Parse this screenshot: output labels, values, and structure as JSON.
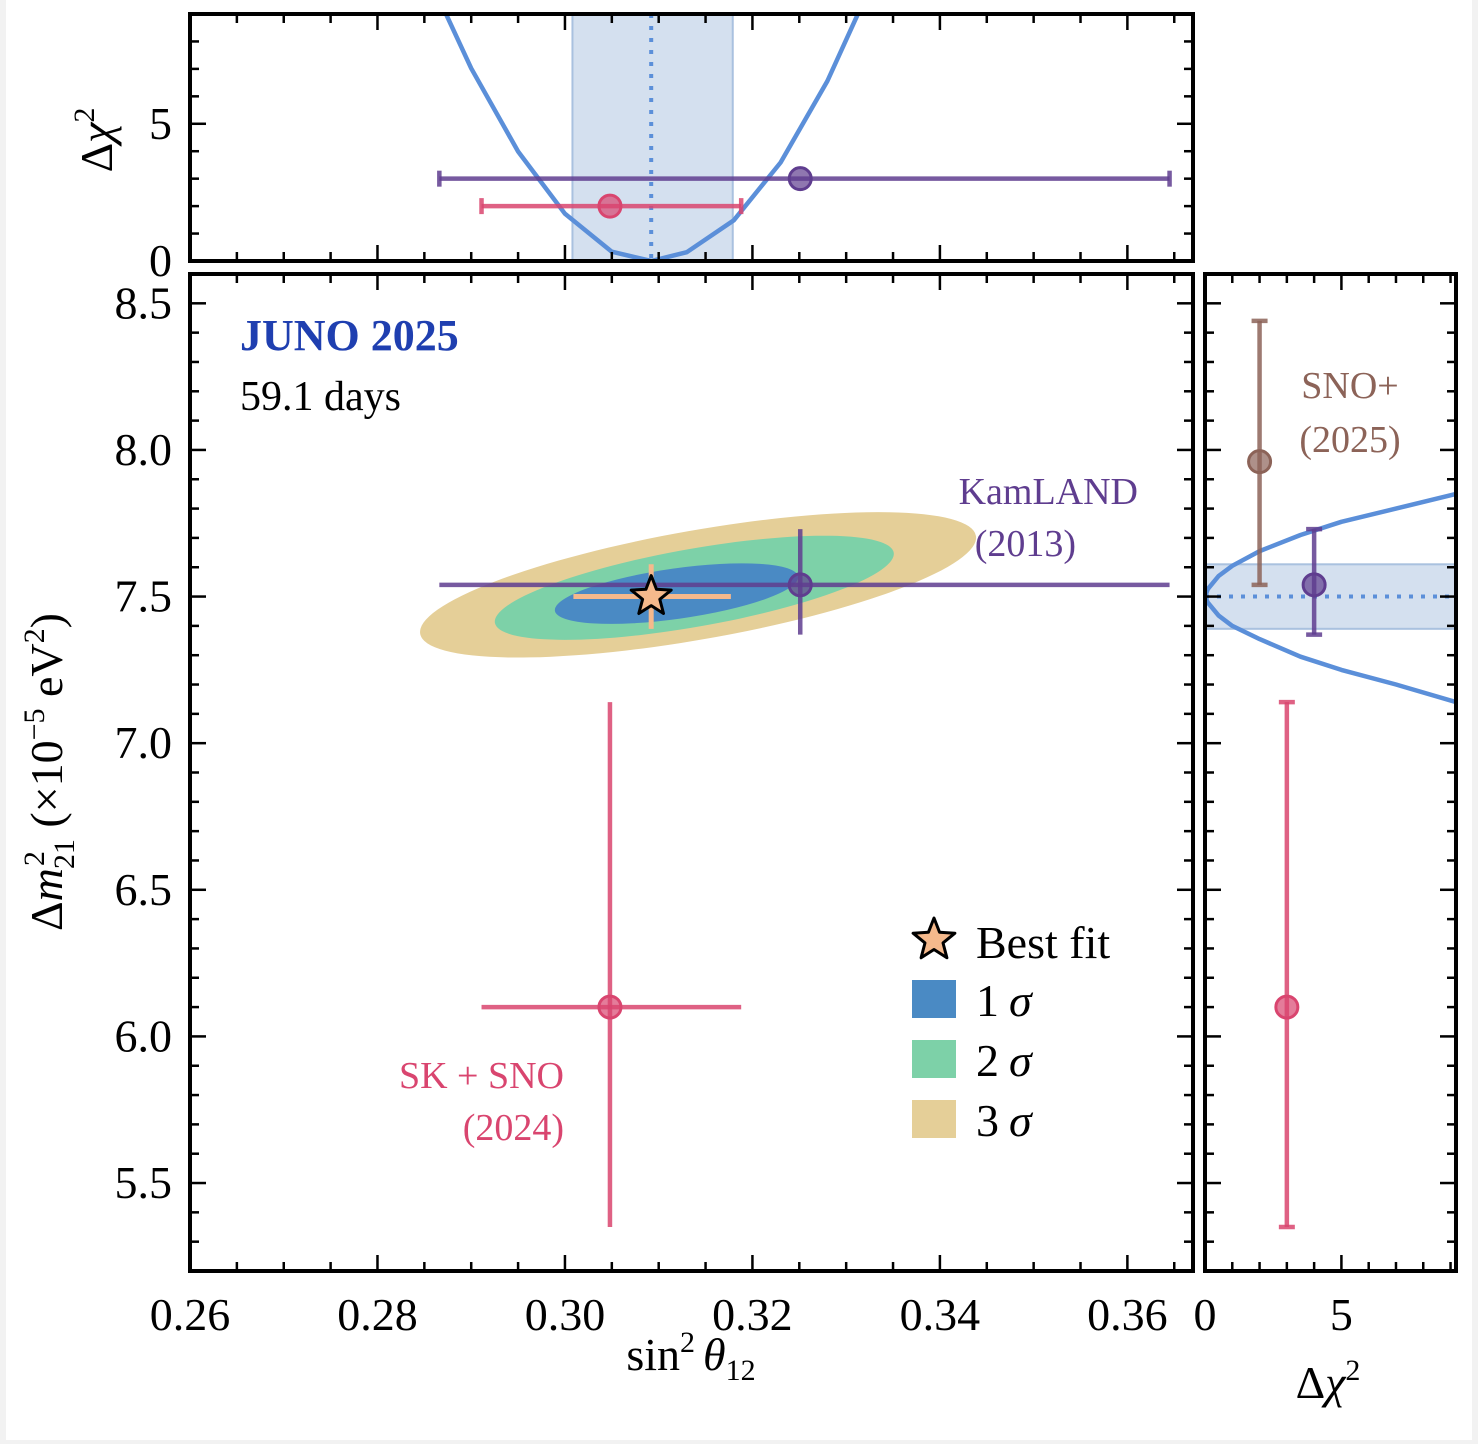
{
  "chart_data": [
    {
      "panel": "top",
      "type": "line",
      "xlim": [
        0.26,
        0.367
      ],
      "ylim": [
        0,
        9
      ],
      "yticks": [
        0,
        5
      ],
      "ylabel": {
        "prefix": "Δ",
        "var": "χ",
        "sup": "2"
      },
      "curve": {
        "color": "#5b8fd9",
        "min_x": 0.3092,
        "points": [
          [
            0.285,
            10.7
          ],
          [
            0.29,
            7.02
          ],
          [
            0.295,
            3.99
          ],
          [
            0.3,
            1.72
          ],
          [
            0.305,
            0.34
          ],
          [
            0.3092,
            0.0
          ],
          [
            0.313,
            0.32
          ],
          [
            0.318,
            1.48
          ],
          [
            0.323,
            3.59
          ],
          [
            0.328,
            6.56
          ],
          [
            0.333,
            10.31
          ]
        ]
      },
      "band": {
        "x0": 0.3008,
        "x1": 0.3179,
        "color": "#c6d6ea"
      },
      "best_fit_x": 0.3092,
      "points": [
        {
          "name": "KamLAND (2013)",
          "x": 0.3251,
          "y": 3.0,
          "xerr": [
            0.2866,
            0.3645
          ],
          "color": "#5f3d8f"
        },
        {
          "name": "SK + SNO (2024)",
          "x": 0.3048,
          "y": 2.0,
          "xerr": [
            0.2911,
            0.3188
          ],
          "color": "#d9456f"
        }
      ]
    },
    {
      "panel": "main",
      "type": "scatter",
      "xlabel": {
        "fn": "sin",
        "sup": "2",
        "var": "θ",
        "sub": "12"
      },
      "ylabel": {
        "prefix": "Δ",
        "var": "m",
        "sup": "2",
        "sub": "21",
        "units_open": " (×10",
        "units_exp": "−5",
        "units_close": " eV",
        "units_exp2": "2",
        "units_end": ")"
      },
      "xlim": [
        0.26,
        0.367
      ],
      "ylim": [
        5.2,
        8.6
      ],
      "xticks": [
        "0.26",
        "0.28",
        "0.30",
        "0.32",
        "0.34",
        "0.36"
      ],
      "yticks": [
        "5.5",
        "6.0",
        "6.5",
        "7.0",
        "7.5",
        "8.0",
        "8.5"
      ],
      "contours": [
        {
          "level": "3σ",
          "cx": 0.3142,
          "cy": 7.54,
          "rx": 0.0301,
          "ry": 0.186,
          "angle_deg": -10,
          "color": "#e5cf98"
        },
        {
          "level": "2σ",
          "cx": 0.3138,
          "cy": 7.53,
          "rx": 0.0216,
          "ry": 0.133,
          "angle_deg": -10,
          "color": "#7dd1a8"
        },
        {
          "level": "1σ",
          "cx": 0.3119,
          "cy": 7.51,
          "rx": 0.0131,
          "ry": 0.086,
          "angle_deg": -8,
          "color": "#4a8ac4"
        }
      ],
      "best_fit": {
        "x": 0.3092,
        "y": 7.5,
        "xerr": [
          0.3009,
          0.3177
        ],
        "yerr": [
          7.39,
          7.61
        ],
        "color": "#f5b98c"
      },
      "points": [
        {
          "name": "KamLAND (2013)",
          "x": 0.3251,
          "y": 7.54,
          "xerr": [
            0.2866,
            0.3645
          ],
          "yerr": [
            7.37,
            7.73
          ],
          "color": "#5f3d8f"
        },
        {
          "name": "SK + SNO (2024)",
          "x": 0.3048,
          "y": 6.1,
          "xerr": [
            0.2911,
            0.3188
          ],
          "yerr": [
            5.35,
            7.14
          ],
          "color": "#d9456f"
        }
      ]
    },
    {
      "panel": "right",
      "type": "line",
      "xlim": [
        0,
        9.2
      ],
      "ylim": [
        5.2,
        8.6
      ],
      "xticks": [
        "0",
        "5"
      ],
      "xlabel": {
        "prefix": "Δ",
        "var": "χ",
        "sup": "2"
      },
      "curve": {
        "color": "#5b8fd9",
        "points": [
          [
            9.2,
            7.14
          ],
          [
            7.0,
            7.2
          ],
          [
            5.0,
            7.25
          ],
          [
            3.5,
            7.295
          ],
          [
            2.0,
            7.355
          ],
          [
            1.0,
            7.4
          ],
          [
            0.5,
            7.435
          ],
          [
            0.1,
            7.48
          ],
          [
            0.0,
            7.5
          ],
          [
            0.1,
            7.525
          ],
          [
            0.5,
            7.57
          ],
          [
            1.0,
            7.605
          ],
          [
            2.0,
            7.655
          ],
          [
            3.5,
            7.71
          ],
          [
            5.0,
            7.755
          ],
          [
            7.0,
            7.8
          ],
          [
            9.2,
            7.85
          ]
        ]
      },
      "band": {
        "y0": 7.39,
        "y1": 7.61,
        "color": "#c6d6ea"
      },
      "best_fit_y": 7.5,
      "points": [
        {
          "name": "SNO+ (2025)",
          "x": 2.0,
          "y": 7.96,
          "yerr": [
            7.54,
            8.44
          ],
          "color": "#8c6358"
        },
        {
          "name": "KamLAND (2013)",
          "x": 4.0,
          "y": 7.54,
          "yerr": [
            7.37,
            7.73
          ],
          "color": "#5f3d8f"
        },
        {
          "name": "SK + SNO (2024)",
          "x": 3.0,
          "y": 6.1,
          "yerr": [
            5.35,
            7.14
          ],
          "color": "#d9456f"
        }
      ]
    }
  ],
  "annotations": {
    "title": "JUNO 2025",
    "title_color": "#1f3fb0",
    "subtitle": "59.1 days",
    "kamland_line1": "KamLAND",
    "kamland_line2": "(2013)",
    "sksno_line1": "SK + SNO",
    "sksno_line2": "(2024)",
    "snoplus_line1": "SNO+",
    "snoplus_line2": "(2025)"
  },
  "legend": {
    "placement": "lower-right",
    "items": [
      {
        "label": "Best fit",
        "marker": "star",
        "color": "#f5b98c"
      },
      {
        "label": "1",
        "sigma": "σ",
        "marker": "square",
        "color": "#4a8ac4"
      },
      {
        "label": "2",
        "sigma": "σ",
        "marker": "square",
        "color": "#7dd1a8"
      },
      {
        "label": "3",
        "sigma": "σ",
        "marker": "square",
        "color": "#e5cf98"
      }
    ]
  }
}
